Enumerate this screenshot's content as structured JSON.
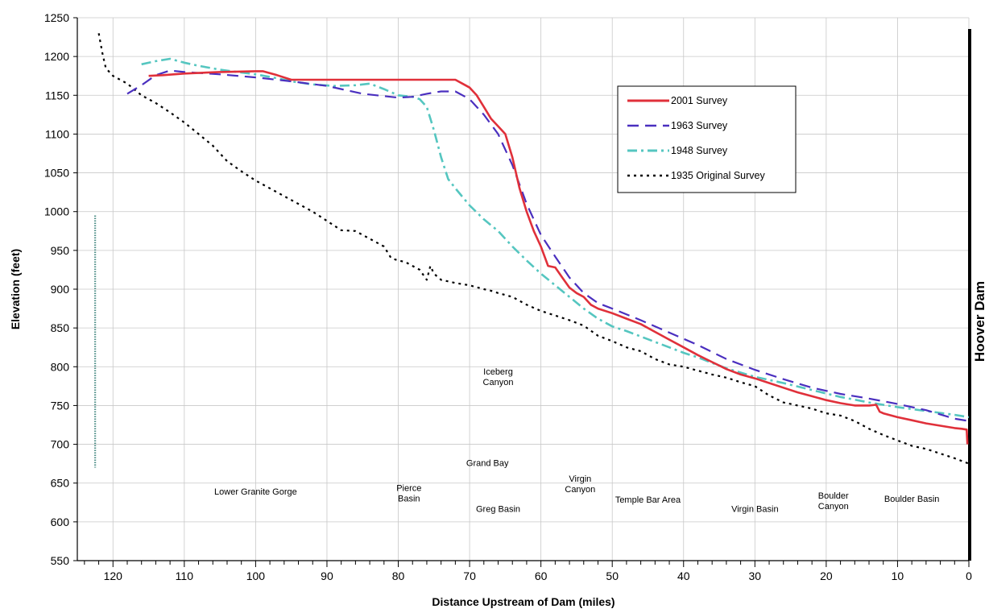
{
  "chart_data": {
    "type": "line",
    "xlabel": "Distance Upstream of Dam (miles)",
    "ylabel": "Elevation (feet)",
    "xlim": [
      125,
      0
    ],
    "ylim": [
      550,
      1250
    ],
    "x_reversed": true,
    "grid": true,
    "legend_position": "top-right",
    "x_ticks": [
      120,
      110,
      100,
      90,
      80,
      70,
      60,
      50,
      40,
      30,
      20,
      10,
      0
    ],
    "y_ticks": [
      550,
      600,
      650,
      700,
      750,
      800,
      850,
      900,
      950,
      1000,
      1050,
      1100,
      1150,
      1200,
      1250
    ],
    "dam_label": "Hoover Dam",
    "series": [
      {
        "name": "2001 Survey",
        "color": "#e0303a",
        "style": "solid",
        "points": [
          [
            115,
            1175
          ],
          [
            113,
            1176
          ],
          [
            110,
            1178
          ],
          [
            105,
            1180
          ],
          [
            100,
            1181
          ],
          [
            99,
            1181
          ],
          [
            97,
            1176
          ],
          [
            95,
            1170
          ],
          [
            90,
            1170
          ],
          [
            85,
            1170
          ],
          [
            80,
            1170
          ],
          [
            75,
            1170
          ],
          [
            72,
            1170
          ],
          [
            71,
            1165
          ],
          [
            70,
            1160
          ],
          [
            69,
            1150
          ],
          [
            68,
            1135
          ],
          [
            67,
            1120
          ],
          [
            66,
            1110
          ],
          [
            65,
            1100
          ],
          [
            64,
            1070
          ],
          [
            63,
            1030
          ],
          [
            62,
            1000
          ],
          [
            61,
            975
          ],
          [
            60,
            955
          ],
          [
            59,
            930
          ],
          [
            58,
            928
          ],
          [
            57,
            915
          ],
          [
            56,
            902
          ],
          [
            55,
            895
          ],
          [
            54,
            890
          ],
          [
            53,
            880
          ],
          [
            52,
            875
          ],
          [
            50,
            869
          ],
          [
            48,
            862
          ],
          [
            46,
            855
          ],
          [
            44,
            845
          ],
          [
            42,
            835
          ],
          [
            40,
            825
          ],
          [
            38,
            815
          ],
          [
            36,
            806
          ],
          [
            34,
            797
          ],
          [
            32,
            790
          ],
          [
            30,
            785
          ],
          [
            28,
            779
          ],
          [
            26,
            773
          ],
          [
            24,
            767
          ],
          [
            22,
            762
          ],
          [
            20,
            757
          ],
          [
            18,
            753
          ],
          [
            16,
            750
          ],
          [
            14,
            750
          ],
          [
            13,
            751
          ],
          [
            12.5,
            742
          ],
          [
            12,
            740
          ],
          [
            10,
            735
          ],
          [
            8,
            731
          ],
          [
            6,
            727
          ],
          [
            4,
            724
          ],
          [
            2,
            721
          ],
          [
            1,
            720
          ],
          [
            0.3,
            719
          ],
          [
            0.2,
            700
          ]
        ]
      },
      {
        "name": "1963 Survey",
        "color": "#4a2fbf",
        "style": "dashed",
        "points": [
          [
            118,
            1152
          ],
          [
            116,
            1163
          ],
          [
            114,
            1176
          ],
          [
            112,
            1182
          ],
          [
            110,
            1180
          ],
          [
            105,
            1177
          ],
          [
            100,
            1173
          ],
          [
            95,
            1168
          ],
          [
            90,
            1162
          ],
          [
            85,
            1152
          ],
          [
            80,
            1147
          ],
          [
            78,
            1148
          ],
          [
            76,
            1152
          ],
          [
            74,
            1155
          ],
          [
            72,
            1155
          ],
          [
            70,
            1145
          ],
          [
            68,
            1125
          ],
          [
            66,
            1100
          ],
          [
            64,
            1060
          ],
          [
            62,
            1010
          ],
          [
            60,
            970
          ],
          [
            58,
            942
          ],
          [
            56,
            915
          ],
          [
            54,
            895
          ],
          [
            52,
            882
          ],
          [
            50,
            875
          ],
          [
            46,
            860
          ],
          [
            42,
            844
          ],
          [
            38,
            828
          ],
          [
            34,
            810
          ],
          [
            30,
            796
          ],
          [
            26,
            784
          ],
          [
            22,
            773
          ],
          [
            18,
            765
          ],
          [
            14,
            759
          ],
          [
            10,
            752
          ],
          [
            6,
            744
          ],
          [
            2,
            733
          ],
          [
            0,
            730
          ]
        ]
      },
      {
        "name": "1948 Survey",
        "color": "#55c6c0",
        "style": "dashdot",
        "points": [
          [
            116,
            1190
          ],
          [
            114,
            1194
          ],
          [
            112,
            1197
          ],
          [
            110,
            1192
          ],
          [
            108,
            1188
          ],
          [
            105,
            1183
          ],
          [
            100,
            1177
          ],
          [
            97,
            1172
          ],
          [
            95,
            1168
          ],
          [
            92,
            1164
          ],
          [
            89,
            1162
          ],
          [
            86,
            1163
          ],
          [
            84,
            1165
          ],
          [
            82,
            1158
          ],
          [
            80,
            1150
          ],
          [
            78,
            1148
          ],
          [
            77,
            1145
          ],
          [
            76,
            1135
          ],
          [
            75,
            1105
          ],
          [
            74,
            1070
          ],
          [
            73,
            1042
          ],
          [
            72,
            1030
          ],
          [
            70,
            1008
          ],
          [
            68,
            990
          ],
          [
            66,
            975
          ],
          [
            64,
            955
          ],
          [
            62,
            937
          ],
          [
            60,
            920
          ],
          [
            58,
            905
          ],
          [
            56,
            890
          ],
          [
            54,
            875
          ],
          [
            52,
            862
          ],
          [
            50,
            852
          ],
          [
            48,
            846
          ],
          [
            46,
            839
          ],
          [
            44,
            832
          ],
          [
            42,
            825
          ],
          [
            40,
            818
          ],
          [
            38,
            812
          ],
          [
            36,
            805
          ],
          [
            34,
            798
          ],
          [
            30,
            787
          ],
          [
            26,
            779
          ],
          [
            22,
            770
          ],
          [
            18,
            761
          ],
          [
            14,
            754
          ],
          [
            10,
            748
          ],
          [
            6,
            743
          ],
          [
            2,
            738
          ],
          [
            0,
            735
          ]
        ]
      },
      {
        "name": "1935 Original Survey",
        "color": "#000000",
        "style": "dotted",
        "points": [
          [
            122,
            1230
          ],
          [
            121.5,
            1205
          ],
          [
            121,
            1185
          ],
          [
            120,
            1175
          ],
          [
            118,
            1165
          ],
          [
            116,
            1150
          ],
          [
            114,
            1140
          ],
          [
            112,
            1128
          ],
          [
            110,
            1115
          ],
          [
            108,
            1100
          ],
          [
            106,
            1085
          ],
          [
            104,
            1065
          ],
          [
            102,
            1052
          ],
          [
            100,
            1040
          ],
          [
            98,
            1030
          ],
          [
            96,
            1020
          ],
          [
            94,
            1010
          ],
          [
            92,
            1000
          ],
          [
            90,
            988
          ],
          [
            88,
            976
          ],
          [
            86,
            975
          ],
          [
            85,
            970
          ],
          [
            84,
            965
          ],
          [
            82,
            955
          ],
          [
            81,
            940
          ],
          [
            80,
            937
          ],
          [
            79,
            935
          ],
          [
            78,
            930
          ],
          [
            77,
            925
          ],
          [
            76,
            912
          ],
          [
            75.5,
            930
          ],
          [
            75,
            920
          ],
          [
            74,
            912
          ],
          [
            72,
            908
          ],
          [
            70,
            905
          ],
          [
            68,
            900
          ],
          [
            67,
            898
          ],
          [
            66,
            895
          ],
          [
            64,
            890
          ],
          [
            62,
            880
          ],
          [
            60,
            872
          ],
          [
            58,
            866
          ],
          [
            56,
            860
          ],
          [
            54,
            853
          ],
          [
            52,
            840
          ],
          [
            50,
            833
          ],
          [
            48,
            825
          ],
          [
            46,
            820
          ],
          [
            44,
            810
          ],
          [
            42,
            803
          ],
          [
            40,
            800
          ],
          [
            38,
            795
          ],
          [
            36,
            790
          ],
          [
            34,
            786
          ],
          [
            32,
            780
          ],
          [
            30,
            775
          ],
          [
            28,
            763
          ],
          [
            26,
            754
          ],
          [
            24,
            750
          ],
          [
            22,
            746
          ],
          [
            20,
            740
          ],
          [
            18,
            737
          ],
          [
            16,
            730
          ],
          [
            14,
            720
          ],
          [
            12,
            712
          ],
          [
            10,
            705
          ],
          [
            8,
            698
          ],
          [
            6,
            694
          ],
          [
            4,
            688
          ],
          [
            2,
            682
          ],
          [
            0,
            675
          ]
        ]
      }
    ],
    "annotations": [
      {
        "text": "Lower Granite Gorge",
        "x": 100,
        "y": 635
      },
      {
        "text": "Pierce Basin",
        "x": 78.5,
        "y": 640
      },
      {
        "text": "Grand Bay",
        "x": 67.5,
        "y": 672
      },
      {
        "text": "Iceberg Canyon",
        "x": 66,
        "y": 790
      },
      {
        "text": "Greg Basin",
        "x": 66,
        "y": 613
      },
      {
        "text": "Virgin Canyon",
        "x": 54.5,
        "y": 652
      },
      {
        "text": "Temple Bar Area",
        "x": 45,
        "y": 625
      },
      {
        "text": "Virgin Basin",
        "x": 30,
        "y": 613
      },
      {
        "text": "Boulder Canyon",
        "x": 19,
        "y": 630
      },
      {
        "text": "Boulder Basin",
        "x": 8,
        "y": 626
      }
    ]
  }
}
